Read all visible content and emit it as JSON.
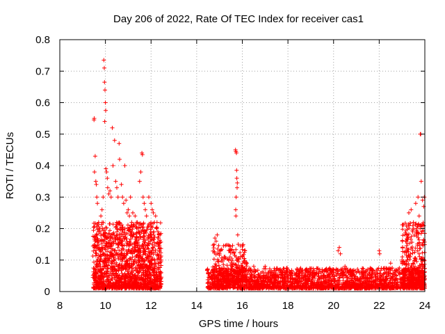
{
  "chart_data": {
    "type": "scatter",
    "title": "Day 206 of 2022, Rate Of TEC Index for receiver cas1",
    "xlabel": "GPS time / hours",
    "ylabel": "ROTI / TECUs",
    "xlim": [
      8,
      24
    ],
    "ylim": [
      0,
      0.8
    ],
    "xticks": [
      8,
      10,
      12,
      14,
      16,
      18,
      20,
      22,
      24
    ],
    "yticks": [
      0,
      0.1,
      0.2,
      0.3,
      0.4,
      0.5,
      0.6,
      0.7,
      0.8
    ],
    "grid": true,
    "marker": "+",
    "color": "#ff0000",
    "series": [
      {
        "name": "cas1",
        "points": [
          [
            9.5,
            0.545
          ],
          [
            9.51,
            0.55
          ],
          [
            9.55,
            0.43
          ],
          [
            9.52,
            0.38
          ],
          [
            9.58,
            0.35
          ],
          [
            9.6,
            0.34
          ],
          [
            9.62,
            0.3
          ],
          [
            9.65,
            0.28
          ],
          [
            9.7,
            0.22
          ],
          [
            9.75,
            0.2
          ],
          [
            9.8,
            0.24
          ],
          [
            9.85,
            0.26
          ],
          [
            9.9,
            0.3
          ],
          [
            9.93,
            0.735
          ],
          [
            9.95,
            0.71
          ],
          [
            9.96,
            0.665
          ],
          [
            9.98,
            0.64
          ],
          [
            10.0,
            0.6
          ],
          [
            10.01,
            0.575
          ],
          [
            9.97,
            0.54
          ],
          [
            10.02,
            0.39
          ],
          [
            10.05,
            0.38
          ],
          [
            10.08,
            0.36
          ],
          [
            10.1,
            0.33
          ],
          [
            10.15,
            0.31
          ],
          [
            10.2,
            0.32
          ],
          [
            10.25,
            0.3
          ],
          [
            10.3,
            0.52
          ],
          [
            10.33,
            0.4
          ],
          [
            10.4,
            0.48
          ],
          [
            10.45,
            0.35
          ],
          [
            10.5,
            0.33
          ],
          [
            10.55,
            0.3
          ],
          [
            10.6,
            0.47
          ],
          [
            10.62,
            0.42
          ],
          [
            10.7,
            0.34
          ],
          [
            10.75,
            0.3
          ],
          [
            10.8,
            0.28
          ],
          [
            10.85,
            0.4
          ],
          [
            10.9,
            0.29
          ],
          [
            10.95,
            0.25
          ],
          [
            11.0,
            0.26
          ],
          [
            11.05,
            0.24
          ],
          [
            11.1,
            0.3
          ],
          [
            11.15,
            0.22
          ],
          [
            11.2,
            0.25
          ],
          [
            11.25,
            0.21
          ],
          [
            11.3,
            0.24
          ],
          [
            11.4,
            0.22
          ],
          [
            11.5,
            0.35
          ],
          [
            11.55,
            0.38
          ],
          [
            11.6,
            0.44
          ],
          [
            11.62,
            0.435
          ],
          [
            11.65,
            0.3
          ],
          [
            11.7,
            0.28
          ],
          [
            11.75,
            0.26
          ],
          [
            11.8,
            0.24
          ],
          [
            11.9,
            0.3
          ],
          [
            12.0,
            0.28
          ],
          [
            12.05,
            0.26
          ],
          [
            12.1,
            0.25
          ],
          [
            12.15,
            0.22
          ],
          [
            12.2,
            0.24
          ],
          [
            12.25,
            0.2
          ],
          [
            12.3,
            0.19
          ],
          [
            12.35,
            0.18
          ],
          [
            15.7,
            0.45
          ],
          [
            15.72,
            0.445
          ],
          [
            15.74,
            0.44
          ],
          [
            15.75,
            0.385
          ],
          [
            15.76,
            0.36
          ],
          [
            15.78,
            0.345
          ],
          [
            15.77,
            0.33
          ],
          [
            15.73,
            0.3
          ],
          [
            15.71,
            0.26
          ],
          [
            15.72,
            0.24
          ],
          [
            15.8,
            0.18
          ],
          [
            15.82,
            0.15
          ],
          [
            14.8,
            0.17
          ],
          [
            14.85,
            0.16
          ],
          [
            14.9,
            0.18
          ],
          [
            15.0,
            0.12
          ],
          [
            15.2,
            0.11
          ],
          [
            15.4,
            0.1
          ],
          [
            16.0,
            0.11
          ],
          [
            16.2,
            0.09
          ],
          [
            16.5,
            0.08
          ],
          [
            17.0,
            0.08
          ],
          [
            17.5,
            0.07
          ],
          [
            18.0,
            0.07
          ],
          [
            18.5,
            0.06
          ],
          [
            19.0,
            0.06
          ],
          [
            19.5,
            0.07
          ],
          [
            20.0,
            0.07
          ],
          [
            20.2,
            0.13
          ],
          [
            20.25,
            0.14
          ],
          [
            20.3,
            0.12
          ],
          [
            20.5,
            0.08
          ],
          [
            21.0,
            0.06
          ],
          [
            21.5,
            0.07
          ],
          [
            22.0,
            0.13
          ],
          [
            22.02,
            0.12
          ],
          [
            22.5,
            0.09
          ],
          [
            23.0,
            0.1
          ],
          [
            23.2,
            0.18
          ],
          [
            23.3,
            0.25
          ],
          [
            23.4,
            0.26
          ],
          [
            23.5,
            0.22
          ],
          [
            23.6,
            0.28
          ],
          [
            23.7,
            0.3
          ],
          [
            23.75,
            0.24
          ],
          [
            23.8,
            0.5
          ],
          [
            23.82,
            0.5
          ],
          [
            23.84,
            0.35
          ],
          [
            23.9,
            0.29
          ],
          [
            23.95,
            0.27
          ],
          [
            23.98,
            0.3
          ]
        ],
        "dense_bands": [
          {
            "x": [
              9.45,
              12.45
            ],
            "y": [
              0.01,
              0.22
            ],
            "count": 1500
          },
          {
            "x": [
              14.45,
              24.0
            ],
            "y": [
              0.01,
              0.075
            ],
            "count": 2200
          },
          {
            "x": [
              14.7,
              16.2
            ],
            "y": [
              0.03,
              0.15
            ],
            "count": 250
          },
          {
            "x": [
              23.0,
              24.0
            ],
            "y": [
              0.02,
              0.22
            ],
            "count": 350
          }
        ]
      }
    ]
  }
}
